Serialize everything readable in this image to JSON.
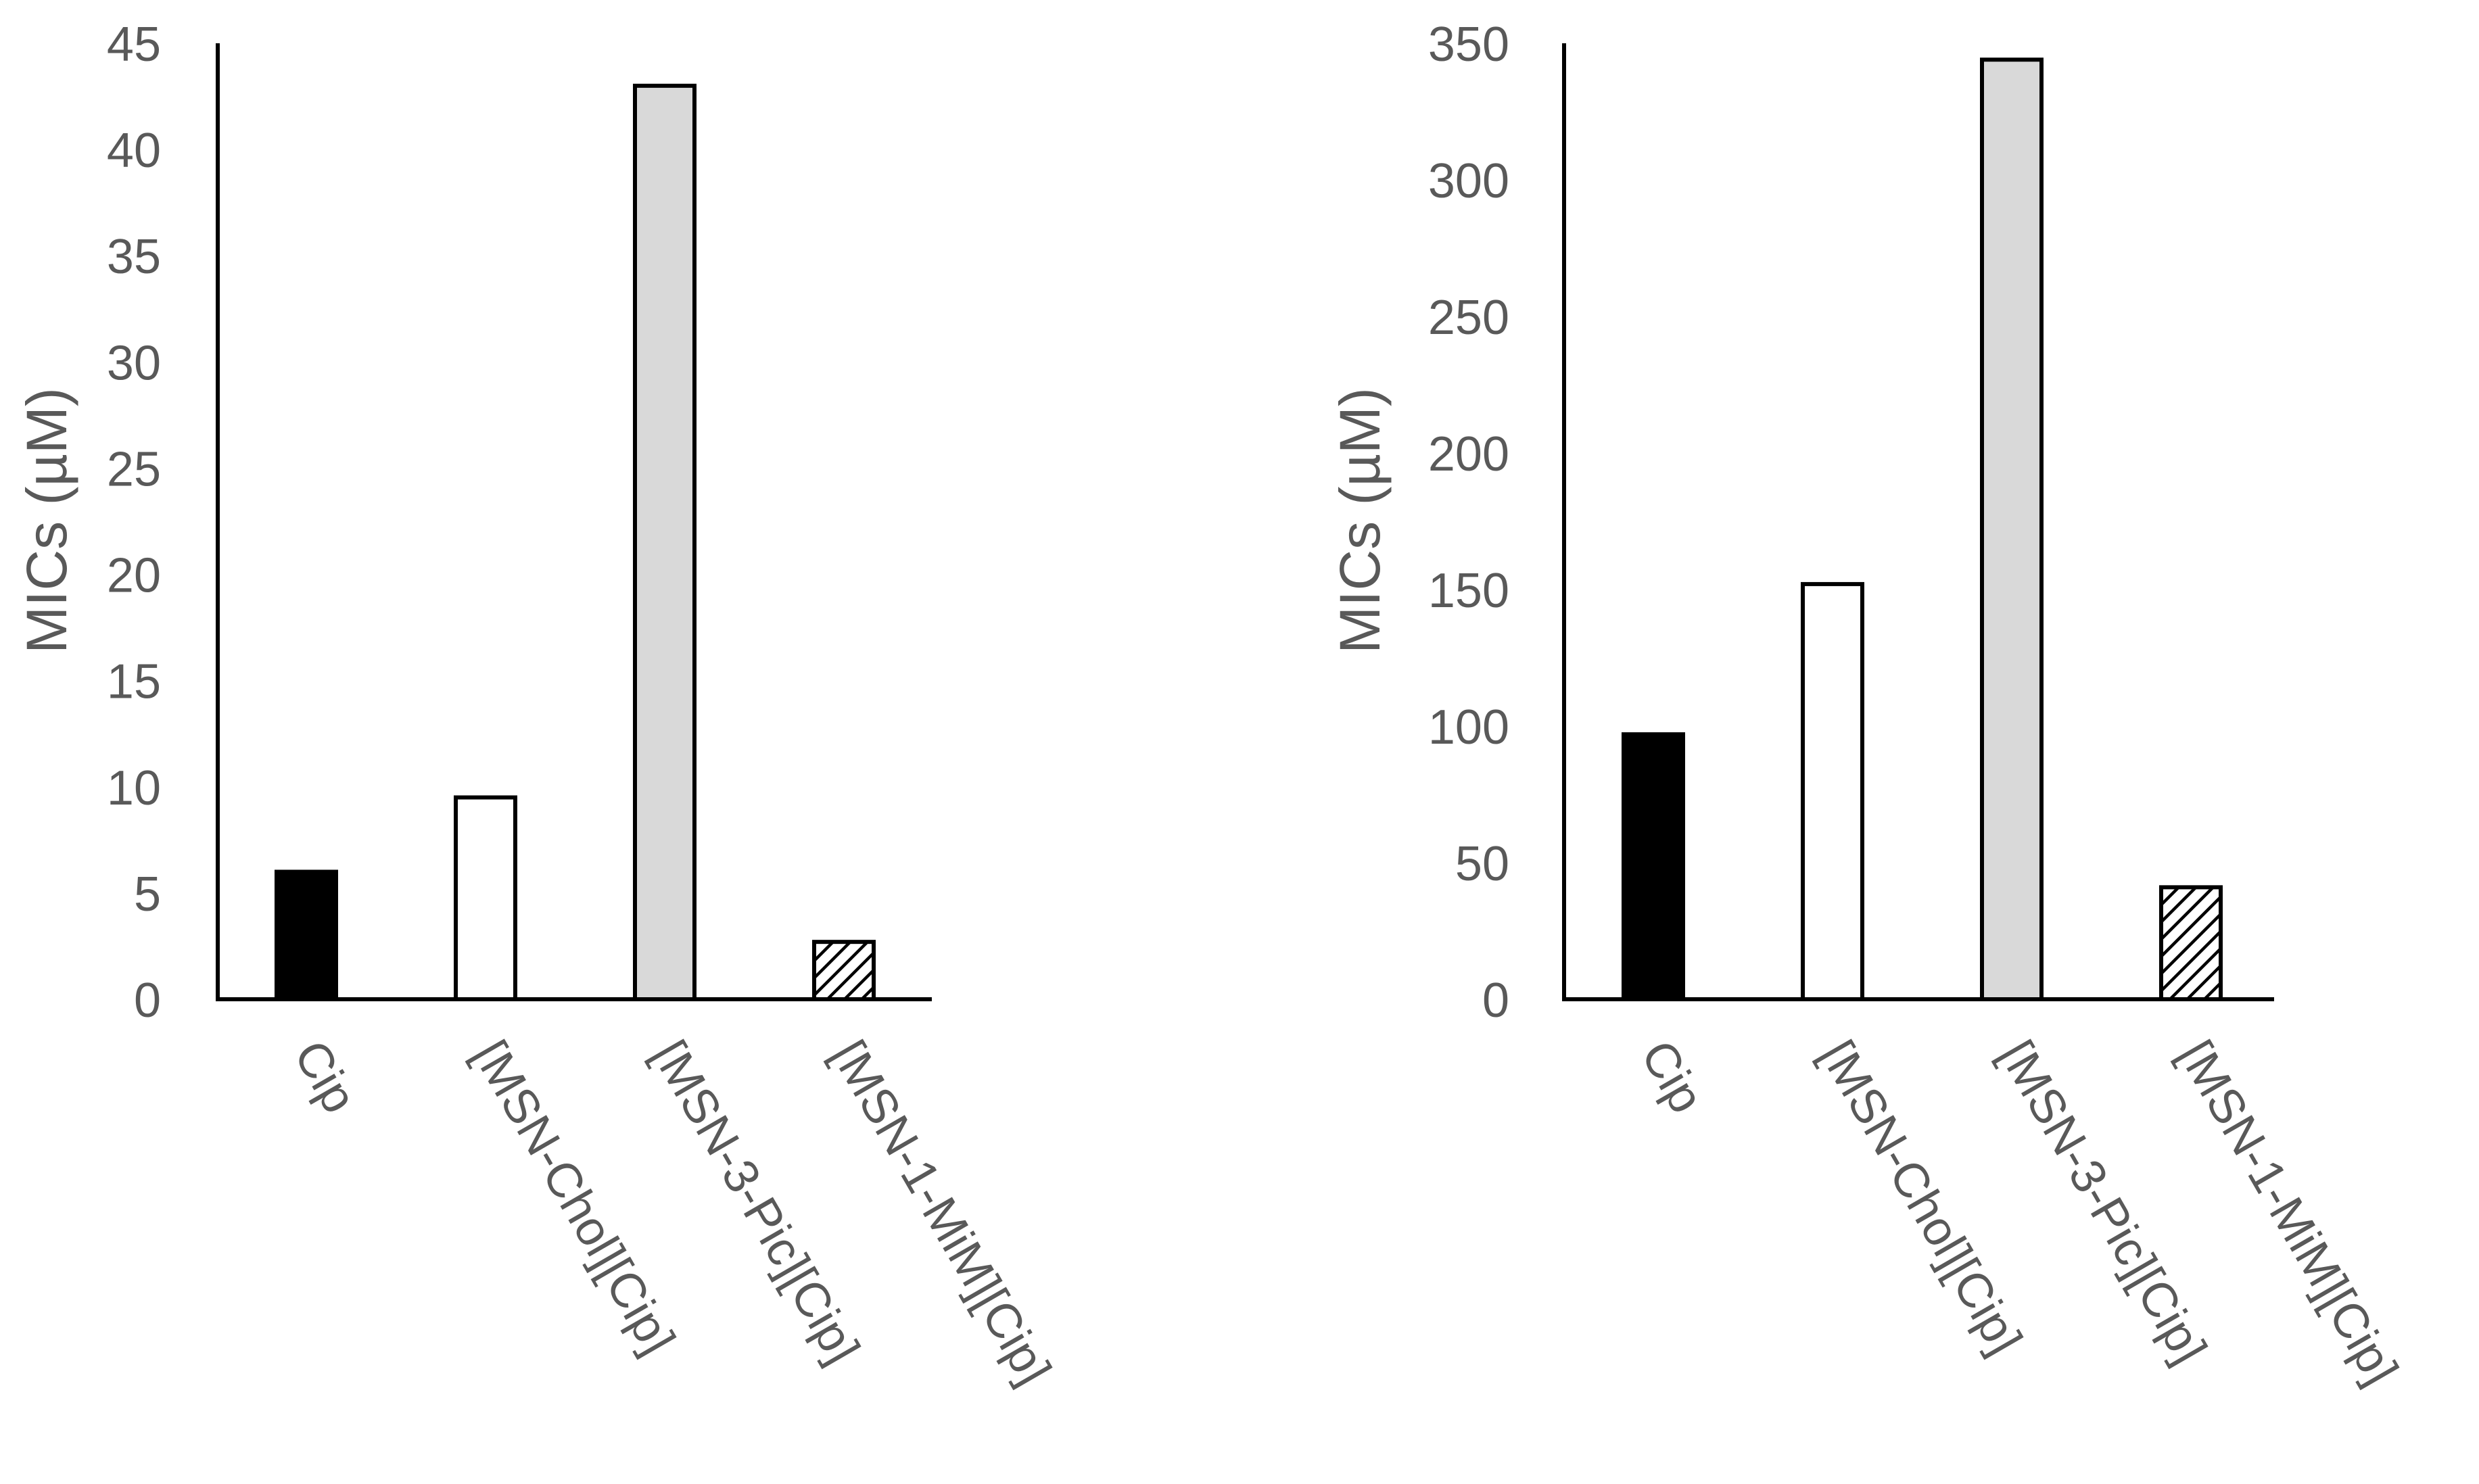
{
  "chart_data": [
    {
      "type": "bar",
      "title": "",
      "xlabel": "",
      "ylabel": "MICs (µM)",
      "ylim": [
        0,
        45
      ],
      "yticks": [
        0,
        5,
        10,
        15,
        20,
        25,
        30,
        35,
        40,
        45
      ],
      "categories": [
        "Cip",
        "[MSN-Chol][Cip]",
        "[MSN-3-Pic][Cip]",
        "[MSN-1-MiM][Cip]"
      ],
      "values": [
        6.0,
        9.5,
        43.0,
        2.7
      ],
      "fills": [
        "solid-black",
        "white",
        "light-gray",
        "hatched"
      ],
      "grid": false,
      "legend": "none"
    },
    {
      "type": "bar",
      "title": "",
      "xlabel": "",
      "ylabel": "MICs (µM)",
      "ylim": [
        0,
        350
      ],
      "yticks": [
        0,
        50,
        100,
        150,
        200,
        250,
        300,
        350
      ],
      "categories": [
        "Cip",
        "[MSN-Chol][Cip]",
        "[MSN-3-Pic][Cip]",
        "[MSN-1-MiM][Cip]"
      ],
      "values": [
        97,
        152,
        344,
        41
      ],
      "fills": [
        "solid-black",
        "white",
        "light-gray",
        "hatched"
      ],
      "grid": false,
      "legend": "none"
    }
  ],
  "colors": {
    "axis": "#000000",
    "text": "#595959",
    "solid-black": "#000000",
    "white": "#ffffff",
    "light-gray": "#d9d9d9",
    "hatch": "#000000"
  }
}
